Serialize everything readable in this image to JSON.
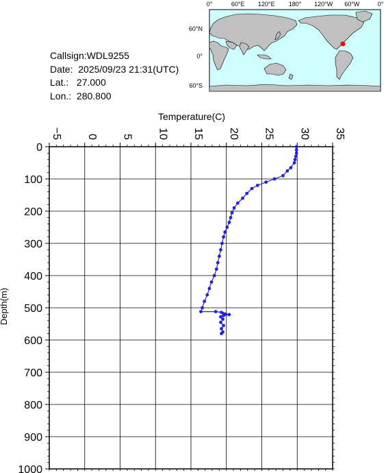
{
  "info": {
    "callsign": "Callsign:WDL9255",
    "date": "Date:  2025/09/23 21:31(UTC)",
    "lat": "Lat.:   27.000",
    "lon": "Lon.:  280.800"
  },
  "map": {
    "lon_labels": [
      "0°",
      "60°E",
      "120°E",
      "180°",
      "120°W",
      "60°W",
      "0°"
    ],
    "lat_labels": [
      "60°N",
      "0°",
      "60°S"
    ],
    "station": {
      "lon": 280.8,
      "lat": 27.0,
      "color": "#ff0000"
    },
    "ocean_color": "#cdfdfd",
    "land_color": "#c0c0c0"
  },
  "chart_data": {
    "type": "line",
    "xlabel": "Temperature(C)",
    "ylabel": "Depth(m)",
    "xlim": [
      -5,
      35
    ],
    "ylim": [
      0,
      1000
    ],
    "x_ticks": [
      -5,
      0,
      5,
      10,
      15,
      20,
      25,
      30,
      35
    ],
    "y_ticks": [
      0,
      100,
      200,
      300,
      400,
      500,
      600,
      700,
      800,
      900,
      1000
    ],
    "y_inverted": true,
    "x_axis_position": "top",
    "grid": true,
    "line_color": "#2020e0",
    "series": [
      {
        "name": "",
        "points": [
          [
            29.9,
            0
          ],
          [
            29.9,
            10
          ],
          [
            29.9,
            20
          ],
          [
            29.8,
            30
          ],
          [
            29.7,
            40
          ],
          [
            29.6,
            50
          ],
          [
            29.1,
            65
          ],
          [
            28.6,
            75
          ],
          [
            28.0,
            90
          ],
          [
            26.8,
            100
          ],
          [
            25.6,
            110
          ],
          [
            24.4,
            120
          ],
          [
            23.6,
            130
          ],
          [
            22.9,
            145
          ],
          [
            22.3,
            160
          ],
          [
            21.6,
            175
          ],
          [
            21.1,
            190
          ],
          [
            20.8,
            205
          ],
          [
            20.6,
            220
          ],
          [
            20.4,
            235
          ],
          [
            20.1,
            250
          ],
          [
            19.8,
            265
          ],
          [
            19.6,
            280
          ],
          [
            19.4,
            300
          ],
          [
            19.2,
            320
          ],
          [
            19.0,
            340
          ],
          [
            18.8,
            360
          ],
          [
            18.6,
            380
          ],
          [
            18.3,
            400
          ],
          [
            17.9,
            420
          ],
          [
            17.6,
            440
          ],
          [
            17.3,
            460
          ],
          [
            16.9,
            480
          ],
          [
            16.6,
            500
          ],
          [
            16.4,
            512
          ],
          [
            18.5,
            512
          ],
          [
            19.3,
            514
          ],
          [
            19.6,
            518
          ],
          [
            19.9,
            520
          ],
          [
            20.4,
            521
          ],
          [
            19.6,
            524
          ],
          [
            19.2,
            528
          ],
          [
            19.5,
            535
          ],
          [
            19.2,
            545
          ],
          [
            19.6,
            555
          ],
          [
            19.3,
            565
          ],
          [
            19.5,
            575
          ],
          [
            19.3,
            580
          ]
        ]
      }
    ]
  }
}
